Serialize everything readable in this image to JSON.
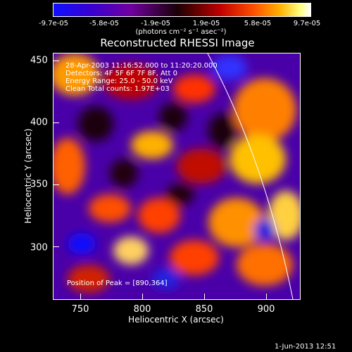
{
  "colorbar": {
    "labels": [
      "-9.7e-05",
      "-5.8e-05",
      "-1.9e-05",
      "1.9e-05",
      "5.8e-05",
      "9.7e-05"
    ],
    "units": "(photons cm⁻² s⁻¹ asec⁻²)"
  },
  "title": "Reconstructed RHESSI Image",
  "info": {
    "line1": "28-Apr-2003 11:16:52.000 to 11:20:20.000",
    "line2": "Detectors: 4F 5F 6F 7F 8F, Att 0",
    "line3": "Energy Range: 25.0 - 50.0 keV",
    "line4": "Clean     Total counts: 1.97E+03",
    "peak": "Position of Peak = [890,364]"
  },
  "axes": {
    "xlabel": "Heliocentric X (arcsec)",
    "ylabel": "Heliocentric Y (arcsec)",
    "xticks": [
      "750",
      "800",
      "850",
      "900"
    ],
    "yticks": [
      "450",
      "400",
      "350",
      "300"
    ]
  },
  "datestamp": "1-Jun-2013 12:51",
  "colors": {
    "positive": "#ff5000",
    "negative": "#3a00d0",
    "zero": "#1a0008"
  }
}
